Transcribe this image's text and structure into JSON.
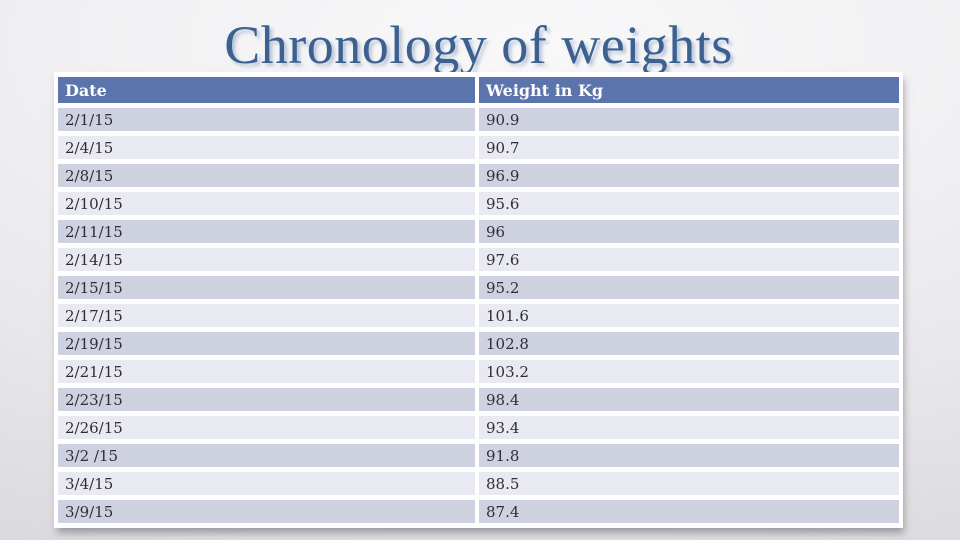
{
  "slide": {
    "title": "Chronology of weights"
  },
  "table": {
    "columns": [
      "Date",
      "Weight in Kg"
    ],
    "rows": [
      [
        "2/1/15",
        "90.9"
      ],
      [
        "2/4/15",
        "90.7"
      ],
      [
        "2/8/15",
        "96.9"
      ],
      [
        "2/10/15",
        "95.6"
      ],
      [
        "2/11/15",
        "96"
      ],
      [
        "2/14/15",
        "97.6"
      ],
      [
        "2/15/15",
        "95.2"
      ],
      [
        "2/17/15",
        "101.6"
      ],
      [
        "2/19/15",
        "102.8"
      ],
      [
        "2/21/15",
        "103.2"
      ],
      [
        "2/23/15",
        "98.4"
      ],
      [
        "2/26/15",
        "93.4"
      ],
      [
        "3/2 /15",
        "91.8"
      ],
      [
        "3/4/15",
        "88.5"
      ],
      [
        "3/9/15",
        "87.4"
      ]
    ]
  },
  "colors": {
    "header_bg": "#5B74AC",
    "header_text": "#FFFFFF",
    "row_dark": "#CDD1E0",
    "row_light": "#E9EAF1",
    "cell_text": "#2F2F33",
    "title": "#3C6191"
  }
}
